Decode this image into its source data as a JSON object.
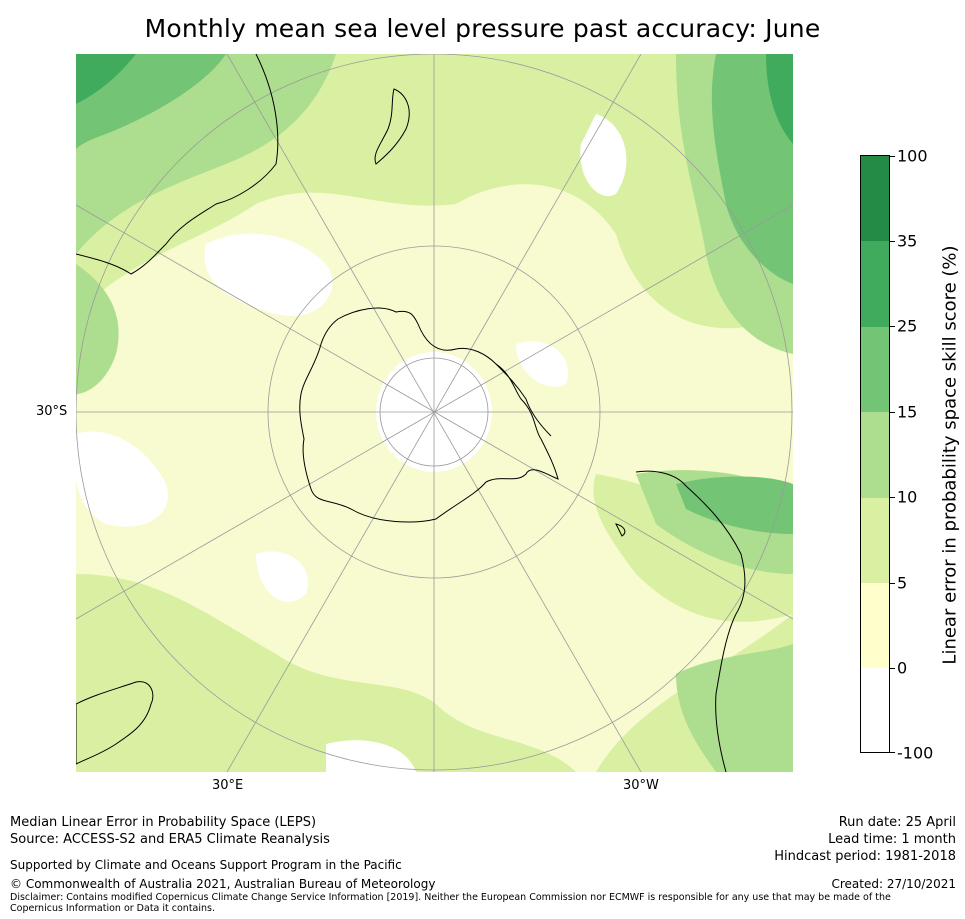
{
  "title": "Monthly mean sea level pressure past accuracy: June",
  "map": {
    "projection": "south-polar stereographic",
    "lat_label": "30°S",
    "lon_labels": [
      "30°E",
      "30°W"
    ]
  },
  "colorbar": {
    "title": "Linear error in probability space skill score (%)",
    "levels": [
      {
        "label": "100",
        "color": "#238b45"
      },
      {
        "label": "35",
        "color": "#41ab5d"
      },
      {
        "label": "25",
        "color": "#74c476"
      },
      {
        "label": "15",
        "color": "#addd8e"
      },
      {
        "label": "10",
        "color": "#d9f0a3"
      },
      {
        "label": "5",
        "color": "#ffffcc"
      },
      {
        "label": "0",
        "color": "#ffffff"
      },
      {
        "label": "-100",
        "color": null
      }
    ]
  },
  "footer": {
    "line1": "Median Linear Error in Probability Space (LEPS)",
    "line2": "Source: ACCESS-S2 and ERA5 Climate Reanalysis",
    "support": "Supported by Climate and Oceans Support Program in the Pacific",
    "copyright": "© Commonwealth of Australia 2021, Australian Bureau of Meteorology",
    "disclaimer": "Disclaimer: Contains modified Copernicus Climate Change Service Information [2019]. Neither the European Commission nor ECMWF is responsible for any use that may be made of the Copernicus Information or Data it contains.",
    "run_date": "Run date: 25 April",
    "lead_time": "Lead time: 1 month",
    "hindcast": "Hindcast period: 1981-2018",
    "created": "Created: 27/10/2021"
  }
}
